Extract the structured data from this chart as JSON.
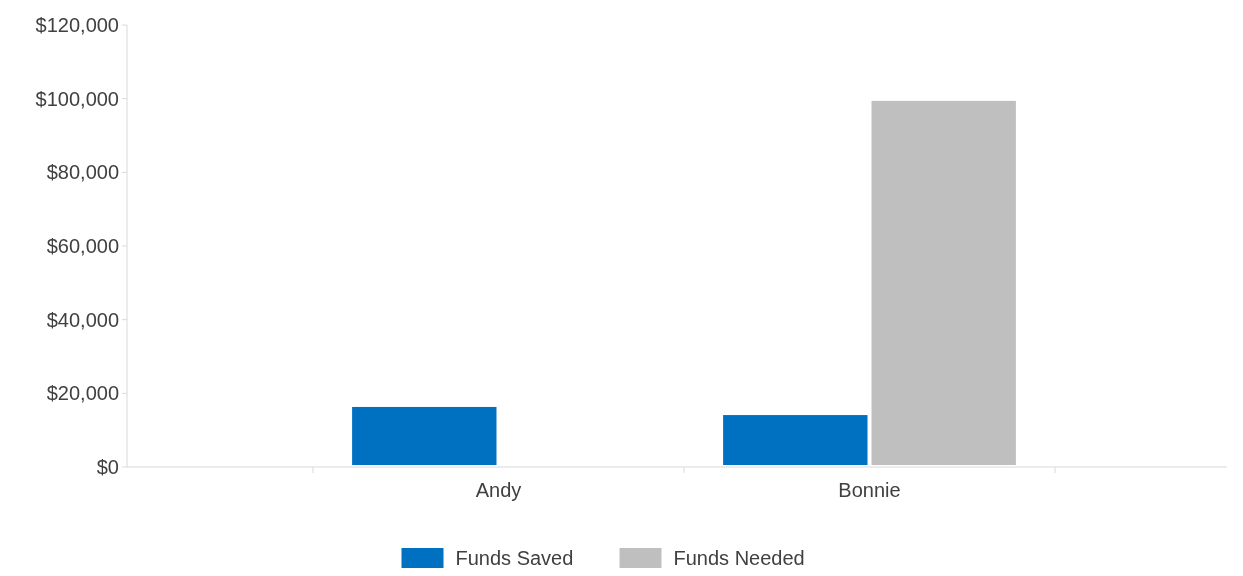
{
  "chart_data": {
    "type": "bar",
    "categories": [
      "Andy",
      "Bonnie"
    ],
    "series": [
      {
        "name": "Funds Saved",
        "color": "#0070c0",
        "values": [
          16300,
          14100
        ]
      },
      {
        "name": "Funds Needed",
        "color": "#bfbfbf",
        "values": [
          null,
          99400
        ]
      }
    ],
    "ylim": [
      0,
      120000
    ],
    "yticks": [
      {
        "value": 0,
        "label": "$0"
      },
      {
        "value": 20000,
        "label": "$20,000"
      },
      {
        "value": 40000,
        "label": "$40,000"
      },
      {
        "value": 60000,
        "label": "$60,000"
      },
      {
        "value": 80000,
        "label": "$80,000"
      },
      {
        "value": 100000,
        "label": "$100,000"
      },
      {
        "value": 120000,
        "label": "$120,000"
      }
    ],
    "legend": "bottom",
    "grid": false
  }
}
